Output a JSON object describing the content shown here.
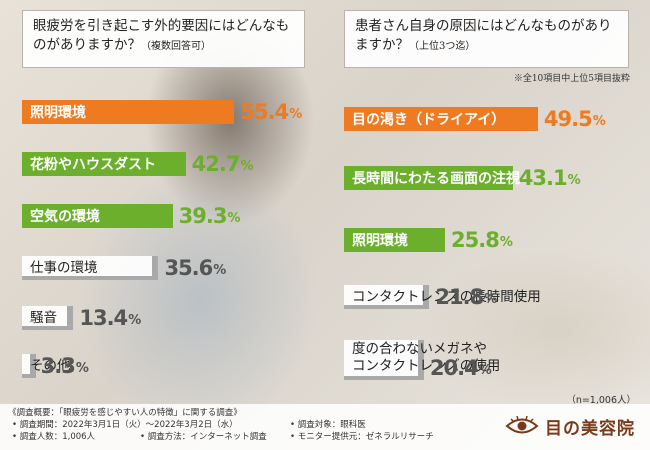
{
  "colors": {
    "orange": "#ee7a22",
    "green": "#6caf2c",
    "gray": "#a9a9a9"
  },
  "chart_data": [
    {
      "type": "bar",
      "title": "眼疲労を引き起こす外的要因にはどんなものがありますか？",
      "subtitle": "（複数回答可）",
      "categories": [
        "照明環境",
        "花粉やハウスダスト",
        "空気の環境",
        "仕事の環境",
        "騒音",
        "その他"
      ],
      "values": [
        55.4,
        42.7,
        39.3,
        35.6,
        13.4,
        3.3
      ],
      "unit": "%",
      "xlim": [
        0,
        60
      ]
    },
    {
      "type": "bar",
      "title": "患者さん自身の原因にはどんなものがありますか？",
      "subtitle": "（上位3つ迄）",
      "note": "※全10項目中上位5項目抜粋",
      "categories": [
        "目の渇き（ドライアイ）",
        "長時間にわたる画面の注視",
        "照明環境",
        "コンタクトレンズの長時間使用",
        "度の合わないメガネやコンタクトレンズの使用"
      ],
      "category_lines": [
        [
          "目の渇き（ドライアイ）"
        ],
        [
          "長時間にわたる画面の注視"
        ],
        [
          "照明環境"
        ],
        [
          "コンタクトレンズの長時間使用"
        ],
        [
          "度の合わないメガネや",
          "コンタクトレンズの使用"
        ]
      ],
      "values": [
        49.5,
        43.1,
        25.8,
        21.8,
        20.4
      ],
      "unit": "%",
      "xlim": [
        0,
        60
      ],
      "sample": "（n=1,006人）"
    }
  ],
  "footer": {
    "l1": "《調査概要：「眼疲労を感じやすい人の特徴」に関する調査》",
    "l2a": "• 調査期間：2022年3月1日（火）〜2022年3月2日（水）",
    "l2b": "• 調査対象：眼科医",
    "l3a": "• 調査人数：1,006人",
    "l3b": "• 調査方法：インターネット調査",
    "l3c": "• モニター提供元：ゼネラルリサーチ"
  },
  "logo": {
    "text": "目の美容院",
    "icon": "eye-icon"
  }
}
